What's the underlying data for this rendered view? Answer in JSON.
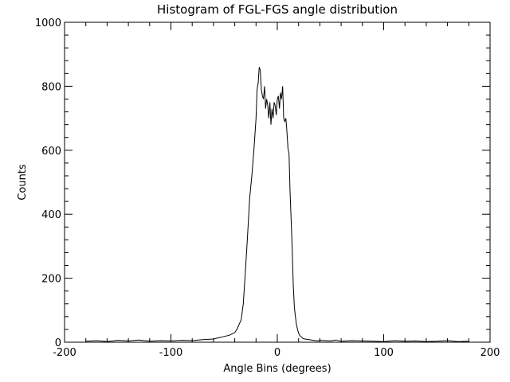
{
  "chart_data": {
    "type": "line",
    "title": "Histogram of FGL-FGS angle distribution",
    "xlabel": "Angle Bins (degrees)",
    "ylabel": "Counts",
    "xlim": [
      -200,
      200
    ],
    "ylim": [
      0,
      1000
    ],
    "xticks": [
      -200,
      -100,
      0,
      100,
      200
    ],
    "xtick_labels": [
      "-200",
      "-100",
      "0",
      "100",
      "200"
    ],
    "yticks": [
      0,
      200,
      400,
      600,
      800,
      1000
    ],
    "ytick_labels": [
      "0",
      "200",
      "400",
      "600",
      "800",
      "1000"
    ],
    "x_minor_step": 20,
    "y_minor_step": 40,
    "grid": false,
    "line_color": "#000000",
    "series": [
      {
        "x": [
          -180,
          -170,
          -160,
          -150,
          -140,
          -130,
          -120,
          -110,
          -100,
          -90,
          -80,
          -70,
          -60,
          -55,
          -50,
          -45,
          -40,
          -38,
          -36,
          -34,
          -32,
          -30,
          -28,
          -26,
          -24,
          -22,
          -20,
          -19,
          -18,
          -17,
          -16,
          -15,
          -14,
          -13,
          -12,
          -11,
          -10,
          -9,
          -8,
          -7,
          -6,
          -5,
          -4,
          -3,
          -2,
          -1,
          0,
          1,
          2,
          3,
          4,
          5,
          6,
          7,
          8,
          9,
          10,
          11,
          12,
          13,
          14,
          15,
          16,
          17,
          18,
          19,
          20,
          21,
          22,
          23,
          24,
          26,
          28,
          30,
          32,
          34,
          36,
          38,
          40,
          45,
          50,
          55,
          60,
          70,
          80,
          90,
          100,
          110,
          120,
          130,
          140,
          150,
          160,
          170,
          180
        ],
        "y": [
          3,
          5,
          2,
          6,
          4,
          7,
          3,
          5,
          4,
          6,
          5,
          8,
          10,
          14,
          18,
          22,
          30,
          40,
          55,
          70,
          120,
          220,
          330,
          450,
          520,
          600,
          700,
          790,
          810,
          860,
          850,
          790,
          770,
          760,
          800,
          730,
          760,
          740,
          700,
          750,
          680,
          730,
          700,
          750,
          740,
          710,
          760,
          770,
          730,
          780,
          760,
          800,
          700,
          690,
          700,
          660,
          605,
          590,
          470,
          380,
          290,
          180,
          110,
          80,
          55,
          40,
          28,
          22,
          18,
          16,
          12,
          10,
          9,
          8,
          7,
          6,
          5,
          4,
          6,
          5,
          4,
          7,
          3,
          5,
          4,
          3,
          2,
          5,
          3,
          4,
          2,
          3,
          5,
          2,
          3
        ]
      }
    ]
  }
}
